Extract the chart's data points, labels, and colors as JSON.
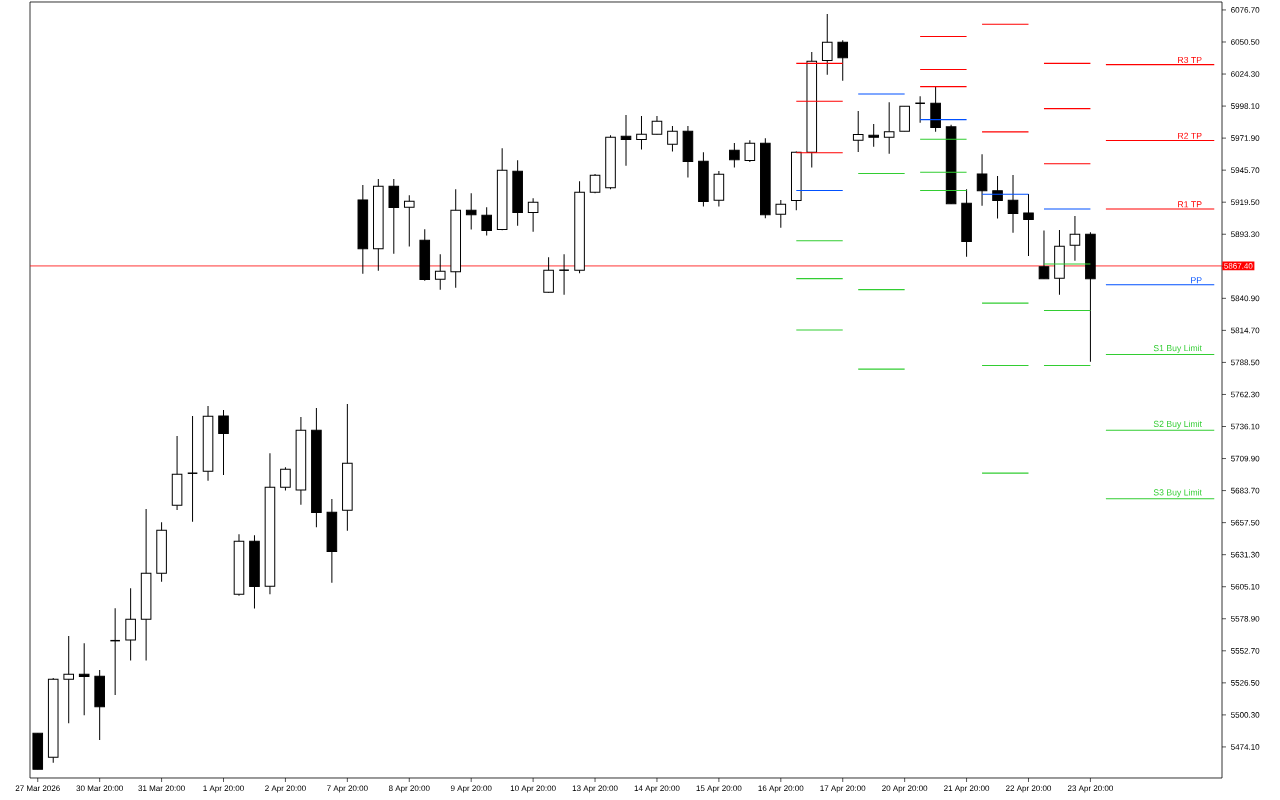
{
  "chart_data": {
    "type": "candlestick",
    "categories": [
      "27 Mar 2026",
      null,
      null,
      null,
      "30 Mar 20:00",
      null,
      null,
      null,
      "31 Mar 20:00",
      null,
      null,
      null,
      "1 Apr 20:00",
      null,
      null,
      null,
      "2 Apr 20:00",
      null,
      null,
      null,
      "7 Apr 20:00",
      null,
      null,
      null,
      "8 Apr 20:00",
      null,
      null,
      null,
      "9 Apr 20:00",
      null,
      null,
      null,
      "10 Apr 20:00",
      null,
      null,
      null,
      "13 Apr 20:00",
      null,
      null,
      null,
      "14 Apr 20:00",
      null,
      null,
      null,
      "15 Apr 20:00",
      null,
      null,
      null,
      "16 Apr 20:00",
      null,
      null,
      null,
      "17 Apr 20:00",
      null,
      null,
      null,
      "20 Apr 20:00",
      null,
      null,
      null,
      "21 Apr 20:00",
      null,
      null,
      null,
      "22 Apr 20:00",
      null,
      null,
      null,
      "23 Apr 20:00",
      null,
      null,
      null,
      null,
      null,
      null,
      null,
      null
    ],
    "ohlc": [
      [
        5485.2,
        5485.2,
        5455.8,
        5455.8
      ],
      [
        5465.6,
        5530.5,
        5461.2,
        5529.4
      ],
      [
        5529.4,
        5564.8,
        5493.4,
        5533.5
      ],
      [
        5533.5,
        5558.9,
        5500.0,
        5531.6
      ],
      [
        5531.9,
        5537.0,
        5479.8,
        5507.0
      ],
      [
        5561.0,
        5587.5,
        5516.6,
        5561.0
      ],
      [
        5561.6,
        5603.8,
        5544.7,
        5578.5
      ],
      [
        5578.5,
        5668.7,
        5544.7,
        5616.1
      ],
      [
        5616.1,
        5657.8,
        5609.2,
        5651.3
      ],
      [
        5671.7,
        5728.4,
        5667.9,
        5697.1
      ],
      [
        5697.9,
        5744.7,
        5658.3,
        5697.9
      ],
      [
        5699.5,
        5752.9,
        5691.8,
        5744.5
      ],
      [
        5744.7,
        5749.6,
        5696.5,
        5730.3
      ],
      [
        5598.9,
        5648.0,
        5597.8,
        5642.3
      ],
      [
        5642.3,
        5647.2,
        5587.2,
        5605.2
      ],
      [
        5605.5,
        5714.2,
        5598.9,
        5686.4
      ],
      [
        5686.4,
        5702.8,
        5683.7,
        5701.2
      ],
      [
        5684.2,
        5743.9,
        5672.2,
        5733.0
      ],
      [
        5733.0,
        5751.3,
        5653.7,
        5665.7
      ],
      [
        5666.0,
        5676.9,
        5608.4,
        5633.8
      ],
      [
        5667.6,
        5754.5,
        5650.9,
        5706.1
      ],
      [
        5921.4,
        5933.6,
        5861.1,
        5881.5
      ],
      [
        5881.5,
        5938.5,
        5863.5,
        5932.6
      ],
      [
        5932.6,
        5938.5,
        5877.4,
        5915.1
      ],
      [
        5915.4,
        5925.2,
        5883.2,
        5920.3
      ],
      [
        5888.4,
        5897.4,
        5855.3,
        5856.2
      ],
      [
        5856.5,
        5877.0,
        5848.0,
        5863.1
      ],
      [
        5862.7,
        5930.1,
        5849.6,
        5912.9
      ],
      [
        5912.9,
        5926.8,
        5897.1,
        5909.3
      ],
      [
        5908.8,
        5915.4,
        5892.2,
        5896.3
      ],
      [
        5897.1,
        5963.6,
        5896.6,
        5945.6
      ],
      [
        5944.8,
        5953.8,
        5900.3,
        5911.0
      ],
      [
        5911.0,
        5922.8,
        5895.4,
        5919.5
      ],
      [
        5845.9,
        5874.5,
        5845.5,
        5863.9
      ],
      [
        5863.9,
        5877.0,
        5843.9,
        5863.9
      ],
      [
        5863.9,
        5936.7,
        5861.4,
        5927.7
      ],
      [
        5927.7,
        5942.6,
        5926.9,
        5941.6
      ],
      [
        5931.4,
        5974.2,
        5930.1,
        5972.6
      ],
      [
        5973.4,
        5990.9,
        5949.4,
        5970.7
      ],
      [
        5970.7,
        5990.0,
        5962.5,
        5975.1
      ],
      [
        5975.1,
        5990.0,
        5974.8,
        5985.7
      ],
      [
        5966.9,
        5981.9,
        5960.9,
        5977.5
      ],
      [
        5977.5,
        5981.9,
        5939.6,
        5952.7
      ],
      [
        5953.0,
        5960.4,
        5915.9,
        5920.0
      ],
      [
        5921.1,
        5945.1,
        5915.9,
        5942.4
      ],
      [
        5962.0,
        5968.0,
        5947.8,
        5954.3
      ],
      [
        5953.5,
        5970.2,
        5952.4,
        5967.7
      ],
      [
        5967.7,
        5971.8,
        5906.4,
        5909.3
      ],
      [
        5909.7,
        5921.4,
        5898.7,
        5917.8
      ],
      [
        5920.8,
        5961.0,
        5912.9,
        5960.4
      ],
      [
        5960.4,
        6042.4,
        5947.8,
        6034.8
      ],
      [
        6035.3,
        6073.4,
        6023.8,
        6050.3
      ],
      [
        6050.3,
        6051.9,
        6018.9,
        6037.7
      ],
      [
        5970.2,
        5994.1,
        5960.6,
        5974.8
      ],
      [
        5974.2,
        5983.5,
        5964.9,
        5972.6
      ],
      [
        5972.6,
        6001.2,
        5959.2,
        5977.2
      ],
      [
        5977.5,
        5998.0,
        5977.5,
        5998.0
      ],
      [
        6000.4,
        6006.1,
        5984.5,
        6000.4
      ],
      [
        6000.4,
        6014.3,
        5977.2,
        5980.5
      ],
      [
        5981.1,
        5982.9,
        5918.0,
        5918.3
      ],
      [
        5918.6,
        5930.1,
        5875.0,
        5887.3
      ],
      [
        5942.6,
        5958.7,
        5916.7,
        5928.9
      ],
      [
        5928.9,
        5941.0,
        5906.1,
        5920.8
      ],
      [
        5921.1,
        5941.8,
        5894.6,
        5910.2
      ],
      [
        5910.7,
        5926.3,
        5875.6,
        5905.3
      ],
      [
        5866.8,
        5896.3,
        5857.0,
        5857.0
      ],
      [
        5857.3,
        5896.8,
        5843.9,
        5883.5
      ],
      [
        5884.3,
        5908.3,
        5871.7,
        5893.3
      ],
      [
        5893.3,
        5894.9,
        5789.1,
        5857.0
      ],
      null,
      null,
      null,
      null,
      null,
      null,
      null,
      null
    ],
    "series": [
      {
        "type": "line",
        "name": "R3 TP",
        "color": "#ff0000",
        "values": [
          null,
          null,
          null,
          null,
          null,
          null,
          null,
          null,
          null,
          null,
          null,
          null,
          null,
          null,
          null,
          null,
          null,
          null,
          null,
          null,
          null,
          null,
          null,
          null,
          null,
          null,
          null,
          null,
          null,
          null,
          null,
          null,
          null,
          null,
          null,
          null,
          null,
          null,
          null,
          null,
          null,
          null,
          null,
          null,
          null,
          null,
          null,
          null,
          null,
          6033,
          6033,
          6033,
          6033,
          null,
          null,
          null,
          null,
          6055,
          6055,
          6055,
          6055,
          null,
          null,
          null,
          null,
          6033,
          6033,
          6033,
          6033,
          6032,
          6032,
          6032,
          6032,
          6032,
          6032,
          6032,
          6032
        ]
      },
      {
        "type": "line",
        "name": "R2 TP",
        "color": "#ff0000",
        "values": [
          null,
          null,
          null,
          null,
          null,
          null,
          null,
          null,
          null,
          null,
          null,
          null,
          null,
          null,
          null,
          null,
          null,
          null,
          null,
          null,
          null,
          null,
          null,
          null,
          null,
          null,
          null,
          null,
          null,
          null,
          null,
          null,
          null,
          null,
          null,
          null,
          null,
          null,
          null,
          null,
          null,
          null,
          null,
          null,
          null,
          null,
          null,
          null,
          null,
          6002,
          6002,
          6002,
          6002,
          null,
          null,
          null,
          null,
          6028,
          6028,
          6028,
          6028,
          6065,
          6065,
          6065,
          6065,
          5996,
          5996,
          5996,
          5996,
          5970,
          5970,
          5970,
          5970,
          5970,
          5970,
          5970,
          5970
        ]
      },
      {
        "type": "line",
        "name": "R1 TP",
        "color": "#ff0000",
        "values": [
          null,
          null,
          null,
          null,
          null,
          null,
          null,
          null,
          null,
          null,
          null,
          null,
          null,
          null,
          null,
          null,
          null,
          null,
          null,
          null,
          null,
          null,
          null,
          null,
          null,
          null,
          null,
          null,
          null,
          null,
          null,
          null,
          null,
          null,
          null,
          null,
          null,
          null,
          null,
          null,
          null,
          null,
          null,
          null,
          null,
          null,
          null,
          null,
          null,
          5960,
          5960,
          5960,
          5960,
          null,
          null,
          null,
          null,
          6014,
          6014,
          6014,
          6014,
          5977,
          5977,
          5977,
          5977,
          5951,
          5951,
          5951,
          5951,
          5914,
          5914,
          5914,
          5914,
          5914,
          5914,
          5914,
          5914
        ]
      },
      {
        "type": "line",
        "name": "PP",
        "color": "#0050ff",
        "values": [
          null,
          null,
          null,
          null,
          null,
          null,
          null,
          null,
          null,
          null,
          null,
          null,
          null,
          null,
          null,
          null,
          null,
          null,
          null,
          null,
          null,
          null,
          null,
          null,
          null,
          null,
          null,
          null,
          null,
          null,
          null,
          null,
          null,
          null,
          null,
          null,
          null,
          null,
          null,
          null,
          null,
          null,
          null,
          null,
          null,
          null,
          null,
          null,
          null,
          5929,
          5929,
          5929,
          5929,
          6008,
          6008,
          6008,
          6008,
          5987,
          5987,
          5987,
          5987,
          5926,
          5926,
          5926,
          5926,
          5914,
          5914,
          5914,
          5914,
          5852,
          5852,
          5852,
          5852,
          5852,
          5852,
          5852,
          5852
        ]
      },
      {
        "type": "line",
        "name": "S1 Buy Limit",
        "color": "#32cd32",
        "values": [
          null,
          null,
          null,
          null,
          null,
          null,
          null,
          null,
          null,
          null,
          null,
          null,
          null,
          null,
          null,
          null,
          null,
          null,
          null,
          null,
          null,
          null,
          null,
          null,
          null,
          null,
          null,
          null,
          null,
          null,
          null,
          null,
          null,
          null,
          null,
          null,
          null,
          null,
          null,
          null,
          null,
          null,
          null,
          null,
          null,
          null,
          null,
          null,
          null,
          5888,
          5888,
          5888,
          5888,
          5943,
          5943,
          5943,
          5943,
          5971,
          5971,
          5971,
          5971,
          5837,
          5837,
          5837,
          5837,
          5869,
          5869,
          5869,
          5869,
          5795,
          5795,
          5795,
          5795,
          5795,
          5795,
          5795,
          5795
        ]
      },
      {
        "type": "line",
        "name": "S2 Buy Limit",
        "color": "#32cd32",
        "values": [
          null,
          null,
          null,
          null,
          null,
          null,
          null,
          null,
          null,
          null,
          null,
          null,
          null,
          null,
          null,
          null,
          null,
          null,
          null,
          null,
          null,
          null,
          null,
          null,
          null,
          null,
          null,
          null,
          null,
          null,
          null,
          null,
          null,
          null,
          null,
          null,
          null,
          null,
          null,
          null,
          null,
          null,
          null,
          null,
          null,
          null,
          null,
          null,
          null,
          5857,
          5857,
          5857,
          5857,
          5848,
          5848,
          5848,
          5848,
          5944,
          5944,
          5944,
          5944,
          5786,
          5786,
          5786,
          5786,
          5831,
          5831,
          5831,
          5831,
          5733,
          5733,
          5733,
          5733,
          5733,
          5733,
          5733,
          5733
        ]
      },
      {
        "type": "line",
        "name": "S3 Buy Limit",
        "color": "#32cd32",
        "values": [
          null,
          null,
          null,
          null,
          null,
          null,
          null,
          null,
          null,
          null,
          null,
          null,
          null,
          null,
          null,
          null,
          null,
          null,
          null,
          null,
          null,
          null,
          null,
          null,
          null,
          null,
          null,
          null,
          null,
          null,
          null,
          null,
          null,
          null,
          null,
          null,
          null,
          null,
          null,
          null,
          null,
          null,
          null,
          null,
          null,
          null,
          null,
          null,
          null,
          5815,
          5815,
          5815,
          5815,
          5783,
          5783,
          5783,
          5783,
          5929,
          5929,
          5929,
          5929,
          5698,
          5698,
          5698,
          5698,
          5786,
          5786,
          5786,
          5786,
          5677,
          5677,
          5677,
          5677,
          5677,
          5677,
          5677,
          5677
        ]
      }
    ],
    "ref_lines": [
      {
        "axis": "y",
        "value": 5867.4,
        "label": "5867.40",
        "color": "#ff0000"
      }
    ],
    "ylim": [
      5448.7,
      6083.2
    ],
    "yticks": [
      {
        "value": 5474.1,
        "label": "5474.10"
      },
      {
        "value": 5500.3,
        "label": "5500.30"
      },
      {
        "value": 5526.5,
        "label": "5526.50"
      },
      {
        "value": 5552.7,
        "label": "5552.70"
      },
      {
        "value": 5578.9,
        "label": "5578.90"
      },
      {
        "value": 5605.1,
        "label": "5605.10"
      },
      {
        "value": 5631.3,
        "label": "5631.30"
      },
      {
        "value": 5657.5,
        "label": "5657.50"
      },
      {
        "value": 5683.7,
        "label": "5683.70"
      },
      {
        "value": 5709.9,
        "label": "5709.90"
      },
      {
        "value": 5736.1,
        "label": "5736.10"
      },
      {
        "value": 5762.3,
        "label": "5762.30"
      },
      {
        "value": 5788.5,
        "label": "5788.50"
      },
      {
        "value": 5814.7,
        "label": "5814.70"
      },
      {
        "value": 5840.9,
        "label": "5840.90"
      },
      {
        "value": 5867.1,
        "label": null
      },
      {
        "value": 5893.3,
        "label": "5893.30"
      },
      {
        "value": 5919.5,
        "label": "5919.50"
      },
      {
        "value": 5945.7,
        "label": "5945.70"
      },
      {
        "value": 5971.9,
        "label": "5971.90"
      },
      {
        "value": 5998.1,
        "label": "5998.10"
      },
      {
        "value": 6024.3,
        "label": "6024.30"
      },
      {
        "value": 6050.5,
        "label": "6050.50"
      },
      {
        "value": 6076.7,
        "label": "6076.70"
      }
    ]
  }
}
